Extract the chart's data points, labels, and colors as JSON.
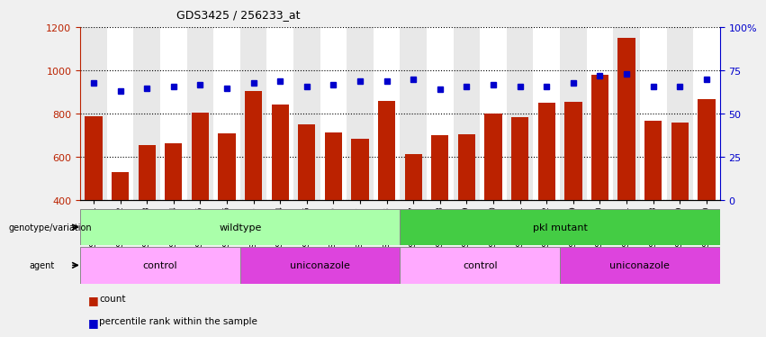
{
  "title": "GDS3425 / 256233_at",
  "samples": [
    "GSM299321",
    "GSM299322",
    "GSM299323",
    "GSM299324",
    "GSM299325",
    "GSM299326",
    "GSM299333",
    "GSM299334",
    "GSM299335",
    "GSM299336",
    "GSM299337",
    "GSM299338",
    "GSM299327",
    "GSM299328",
    "GSM299329",
    "GSM299330",
    "GSM299331",
    "GSM299332",
    "GSM299339",
    "GSM299340",
    "GSM299341",
    "GSM299408",
    "GSM299409",
    "GSM299410"
  ],
  "counts": [
    790,
    530,
    655,
    662,
    805,
    710,
    905,
    845,
    750,
    715,
    685,
    860,
    615,
    700,
    705,
    800,
    785,
    850,
    855,
    980,
    1150,
    770,
    760,
    870
  ],
  "percentiles": [
    68,
    63,
    65,
    66,
    67,
    65,
    68,
    69,
    66,
    67,
    69,
    69,
    70,
    64,
    66,
    67,
    66,
    66,
    68,
    72,
    73,
    66,
    66,
    70
  ],
  "ylim_left": [
    400,
    1200
  ],
  "ylim_right": [
    0,
    100
  ],
  "yticks_left": [
    400,
    600,
    800,
    1000,
    1200
  ],
  "yticks_right": [
    0,
    25,
    50,
    75,
    100
  ],
  "bar_color": "#bb2200",
  "dot_color": "#0000cc",
  "plot_bg_color": "#ffffff",
  "fig_bg_color": "#f0f0f0",
  "col_colors": [
    "#e8e8e8",
    "#ffffff"
  ],
  "groups_genotype": [
    {
      "label": "wildtype",
      "start": 0,
      "end": 12,
      "color": "#aaffaa"
    },
    {
      "label": "pkl mutant",
      "start": 12,
      "end": 24,
      "color": "#44cc44"
    }
  ],
  "groups_agent": [
    {
      "label": "control",
      "start": 0,
      "end": 6,
      "color": "#ffaaff"
    },
    {
      "label": "uniconazole",
      "start": 6,
      "end": 12,
      "color": "#dd44dd"
    },
    {
      "label": "control",
      "start": 12,
      "end": 18,
      "color": "#ffaaff"
    },
    {
      "label": "uniconazole",
      "start": 18,
      "end": 24,
      "color": "#dd44dd"
    }
  ],
  "legend_items": [
    {
      "label": "count",
      "color": "#bb2200"
    },
    {
      "label": "percentile rank within the sample",
      "color": "#0000cc"
    }
  ]
}
